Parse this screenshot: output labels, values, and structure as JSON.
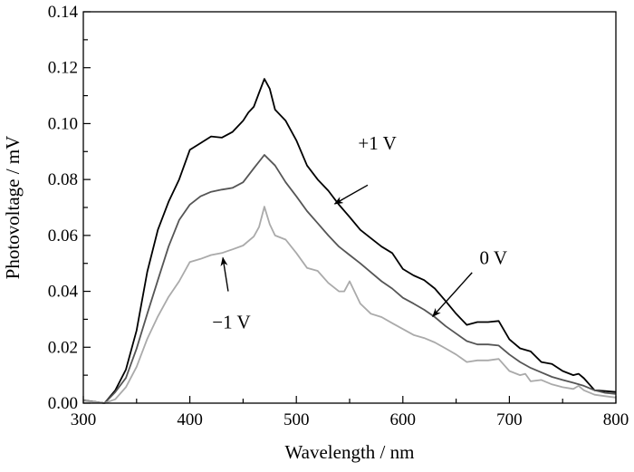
{
  "chart_data": {
    "type": "line",
    "title": "",
    "xlabel": "Wavelength / nm",
    "ylabel": "Photovoltage / mV",
    "xlim": [
      300,
      800
    ],
    "ylim": [
      0,
      0.14
    ],
    "xticks": [
      300,
      400,
      500,
      600,
      700,
      800
    ],
    "xtick_labels": [
      "300",
      "400",
      "500",
      "600",
      "700",
      "800"
    ],
    "yticks": [
      0,
      0.02,
      0.04,
      0.06,
      0.08,
      0.1,
      0.12,
      0.14
    ],
    "ytick_labels": [
      "0.00",
      "0.02",
      "0.04",
      "0.06",
      "0.08",
      "0.10",
      "0.12",
      "0.14"
    ],
    "x_minor_step": 50,
    "y_minor_step": 0.01,
    "grid": false,
    "series": [
      {
        "name": "+1 V",
        "color": "#000000",
        "x": [
          300,
          320,
          330,
          340,
          350,
          360,
          370,
          380,
          390,
          400,
          410,
          420,
          430,
          440,
          450,
          455,
          460,
          465,
          470,
          475,
          480,
          490,
          500,
          510,
          520,
          530,
          540,
          550,
          560,
          570,
          580,
          590,
          600,
          610,
          620,
          630,
          640,
          650,
          660,
          670,
          680,
          690,
          700,
          710,
          720,
          730,
          740,
          750,
          760,
          765,
          770,
          780,
          790,
          800
        ],
        "y": [
          0.001,
          0,
          0.0046,
          0.012,
          0.026,
          0.047,
          0.062,
          0.072,
          0.08,
          0.0906,
          0.093,
          0.0954,
          0.095,
          0.097,
          0.101,
          0.104,
          0.106,
          0.111,
          0.116,
          0.1125,
          0.105,
          0.101,
          0.094,
          0.085,
          0.08,
          0.076,
          0.071,
          0.0666,
          0.062,
          0.059,
          0.056,
          0.0537,
          0.048,
          0.0457,
          0.044,
          0.041,
          0.0366,
          0.032,
          0.028,
          0.029,
          0.029,
          0.0294,
          0.0228,
          0.0196,
          0.0185,
          0.0147,
          0.014,
          0.0115,
          0.01,
          0.0105,
          0.0089,
          0.0046,
          0.0043,
          0.004
        ]
      },
      {
        "name": "0 V",
        "color": "#555555",
        "x": [
          300,
          320,
          330,
          340,
          350,
          360,
          370,
          380,
          390,
          400,
          410,
          420,
          430,
          440,
          450,
          460,
          470,
          480,
          490,
          500,
          510,
          520,
          530,
          540,
          550,
          560,
          570,
          580,
          590,
          600,
          610,
          620,
          630,
          640,
          650,
          660,
          670,
          680,
          690,
          700,
          710,
          720,
          730,
          740,
          750,
          760,
          770,
          780,
          790,
          800
        ],
        "y": [
          0.001,
          0,
          0.004,
          0.009,
          0.0195,
          0.032,
          0.044,
          0.056,
          0.0655,
          0.071,
          0.074,
          0.0756,
          0.0764,
          0.077,
          0.079,
          0.084,
          0.0888,
          0.085,
          0.079,
          0.074,
          0.0687,
          0.0644,
          0.06,
          0.056,
          0.053,
          0.05,
          0.0468,
          0.0436,
          0.041,
          0.0377,
          0.0356,
          0.0334,
          0.0308,
          0.0276,
          0.0249,
          0.0222,
          0.021,
          0.021,
          0.0206,
          0.0174,
          0.0147,
          0.0126,
          0.011,
          0.0094,
          0.0083,
          0.0073,
          0.0062,
          0.0046,
          0.0037,
          0.0033
        ]
      },
      {
        "name": "−1 V",
        "color": "#aaaaaa",
        "x": [
          300,
          320,
          330,
          340,
          350,
          360,
          370,
          380,
          390,
          400,
          410,
          420,
          430,
          440,
          450,
          460,
          465,
          470,
          475,
          480,
          490,
          500,
          510,
          520,
          530,
          540,
          545,
          550,
          560,
          570,
          580,
          590,
          600,
          610,
          620,
          630,
          640,
          650,
          660,
          670,
          680,
          690,
          700,
          710,
          715,
          720,
          730,
          740,
          750,
          760,
          765,
          770,
          780,
          790,
          800
        ],
        "y": [
          0.0008,
          0,
          0.0014,
          0.0057,
          0.013,
          0.023,
          0.031,
          0.038,
          0.0436,
          0.0505,
          0.0516,
          0.053,
          0.0537,
          0.055,
          0.0564,
          0.0596,
          0.063,
          0.0703,
          0.064,
          0.06,
          0.0585,
          0.0537,
          0.0484,
          0.0473,
          0.043,
          0.04,
          0.04,
          0.0436,
          0.0356,
          0.032,
          0.0308,
          0.0286,
          0.0265,
          0.0244,
          0.0233,
          0.0217,
          0.0196,
          0.0174,
          0.0147,
          0.0153,
          0.0153,
          0.0158,
          0.0115,
          0.01,
          0.0105,
          0.0078,
          0.0083,
          0.0067,
          0.0057,
          0.0051,
          0.0062,
          0.0046,
          0.003,
          0.0025,
          0.002
        ]
      }
    ],
    "annotations": [
      {
        "text": "+1 V",
        "text_at": [
          576,
          0.093
        ],
        "arrow_from": [
          567,
          0.078
        ],
        "arrow_to": [
          536,
          0.0713
        ]
      },
      {
        "text": "0 V",
        "text_at": [
          685,
          0.052
        ],
        "arrow_from": [
          665,
          0.0467
        ],
        "arrow_to": [
          628,
          0.031
        ]
      },
      {
        "text": "−1 V",
        "text_at": [
          439,
          0.029
        ],
        "arrow_from": [
          436,
          0.04
        ],
        "arrow_to": [
          431,
          0.052
        ]
      }
    ]
  }
}
